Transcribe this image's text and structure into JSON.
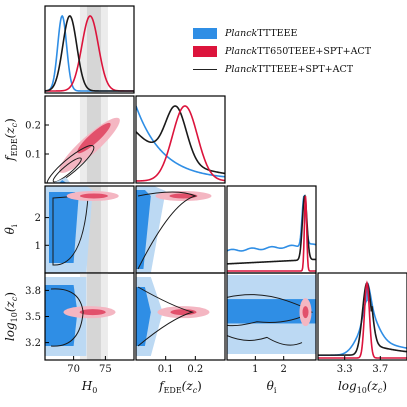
{
  "chart_data": {
    "type": "triangle",
    "parameters": [
      {
        "key": "H0",
        "label": "H_0",
        "ticks": [
          70,
          75
        ]
      },
      {
        "key": "fEDE",
        "label": "f_EDE(z_c)",
        "ticks": [
          0.1,
          0.2
        ]
      },
      {
        "key": "theta",
        "label": "θ_i",
        "ticks": [
          1,
          2
        ]
      },
      {
        "key": "logzc",
        "label": "log10(z_c)",
        "ticks": [
          3.3,
          3.7
        ]
      }
    ],
    "ranges": {
      "H0": [
        65.5,
        79.5
      ],
      "fEDE": [
        0.0,
        0.3
      ],
      "theta": [
        0.0,
        3.14
      ],
      "logzc": [
        3.0,
        4.0
      ]
    },
    "ytick_labels": {
      "fEDE": [
        "0.1",
        "0.2"
      ],
      "theta": [
        "1",
        "2"
      ],
      "logzc": [
        "3.2",
        "3.5",
        "3.8"
      ]
    },
    "xtick_labels": {
      "H0": [
        "70",
        "75"
      ],
      "fEDE": [
        "0.1",
        "0.2"
      ],
      "theta": [
        "1",
        "2"
      ],
      "logzc": [
        "3.3",
        "3.7"
      ]
    },
    "axis_labels": {
      "H0": "H",
      "H0_sub": "0",
      "fEDE": "f",
      "fEDE_sub": "EDE",
      "fEDE_tail": "(z",
      "fEDE_tail_sub": "c",
      "fEDE_close": ")",
      "theta": "θ",
      "theta_sub": "i",
      "logzc": "log",
      "logzc_sub": "10",
      "logzc_tail": "(z",
      "logzc_tail_sub": "c",
      "logzc_close": ")"
    },
    "series": [
      {
        "name_italic": "Planck",
        "name_rest": "TTTEEE",
        "color": "#2f8ee5",
        "style": "filled-light"
      },
      {
        "name_italic": "Planck",
        "name_rest": "TT650TEEE+SPT+ACT",
        "color": "#dc143c",
        "style": "filled"
      },
      {
        "name_italic": "Planck",
        "name_rest": "TTTEEE+SPT+ACT",
        "color": "#1a1a1a",
        "style": "line"
      }
    ],
    "shaded_band": {
      "param": "H0",
      "inner": [
        72.1,
        74.3
      ],
      "outer": [
        71.0,
        75.4
      ]
    },
    "posteriors_1d": {
      "H0": [
        {
          "series": 0,
          "peak": 68.2,
          "width": 0.7,
          "amp": 1.0
        },
        {
          "series": 1,
          "peak": 72.6,
          "width": 1.3,
          "amp": 1.0
        },
        {
          "series": 2,
          "peak": 69.4,
          "width": 1.1,
          "amp": 1.0
        }
      ],
      "logzc": [
        {
          "series": 0,
          "peak": 3.55,
          "width": 0.05,
          "amp": 1.0
        },
        {
          "series": 1,
          "peak": 3.55,
          "width": 0.02,
          "amp": 1.0
        },
        {
          "series": 2,
          "peak": 3.55,
          "width": 0.035,
          "amp": 1.0
        }
      ],
      "theta": [
        {
          "series": 0,
          "peak": 2.72,
          "width": 0.05,
          "amp": 1.0
        },
        {
          "series": 1,
          "peak": 2.77,
          "width": 0.03,
          "amp": 1.0
        },
        {
          "series": 2,
          "peak": 2.74,
          "width": 0.04,
          "amp": 1.0
        }
      ],
      "fEDE": [
        {
          "series": 1,
          "peak": 0.165,
          "width": 0.04,
          "amp": 1.0
        }
      ]
    }
  }
}
